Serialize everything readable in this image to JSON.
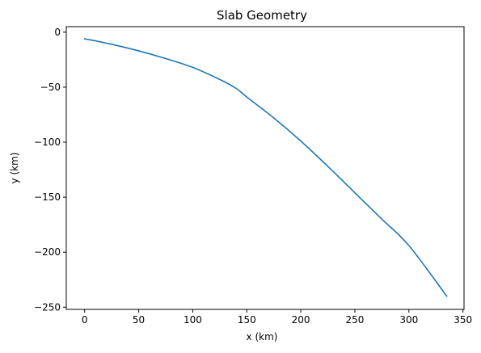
{
  "chart_data": {
    "type": "line",
    "title": "Slab Geometry",
    "xlabel": "x (km)",
    "ylabel": "y (km)",
    "xlim": [
      -17,
      351
    ],
    "ylim": [
      -252,
      5
    ],
    "xticks": [
      0,
      50,
      100,
      150,
      200,
      250,
      300,
      350
    ],
    "xtick_labels": [
      "0",
      "50",
      "100",
      "150",
      "200",
      "250",
      "300",
      "350"
    ],
    "yticks": [
      0,
      -50,
      -100,
      -150,
      -200,
      -250
    ],
    "ytick_labels": [
      "0",
      "−50",
      "−100",
      "−150",
      "−200",
      "−250"
    ],
    "grid": false,
    "legend": "none",
    "series": [
      {
        "color": "#1f77b4",
        "x": [
          0,
          25,
          50,
          75,
          100,
          125,
          140,
          150,
          175,
          200,
          225,
          250,
          275,
          300,
          335
        ],
        "y": [
          -6,
          -11,
          -17,
          -24,
          -32,
          -43,
          -51,
          -59,
          -78,
          -99,
          -122,
          -146,
          -170,
          -194,
          -240
        ]
      }
    ]
  }
}
